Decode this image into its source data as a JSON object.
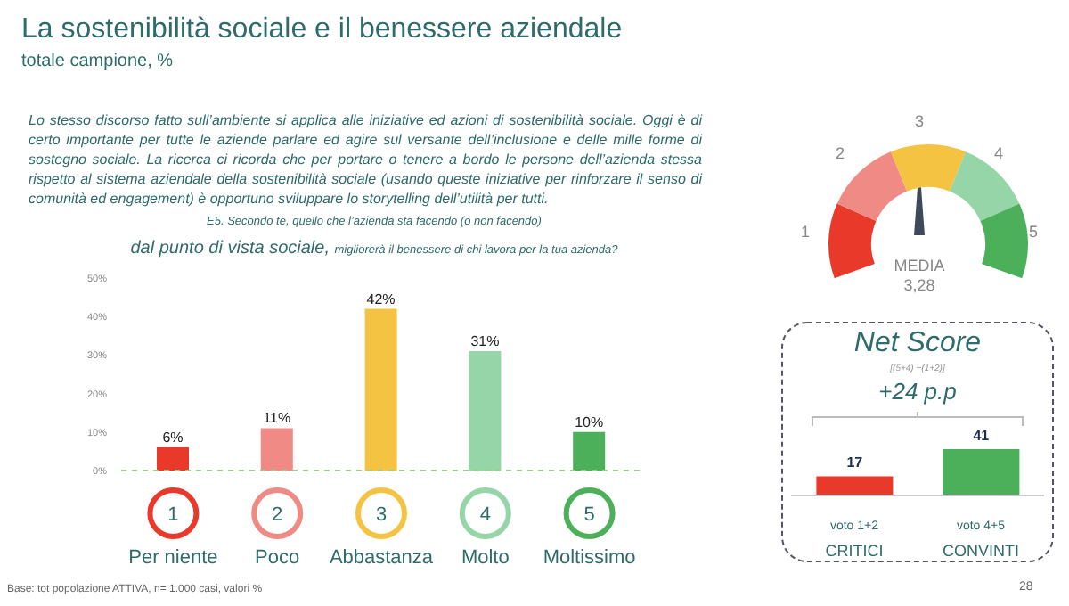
{
  "chart_data": [
    {
      "type": "bar",
      "title": "La sostenibilità sociale e il benessere aziendale",
      "subtitle": "totale campione, %",
      "categories": [
        "Per niente",
        "Poco",
        "Abbastanza",
        "Molto",
        "Moltissimo"
      ],
      "values": [
        6,
        11,
        42,
        31,
        10
      ],
      "colors": [
        "#e8392b",
        "#ef8a85",
        "#f5c342",
        "#96d5a8",
        "#4caf5a"
      ],
      "value_labels": [
        "6%",
        "11%",
        "42%",
        "31%",
        "10%"
      ],
      "ylim": [
        0,
        50
      ],
      "yticks": [
        {
          "value": 0,
          "label": "0%"
        },
        {
          "value": 10,
          "label": "10%"
        },
        {
          "value": 20,
          "label": "20%"
        },
        {
          "value": 30,
          "label": "30%"
        },
        {
          "value": 40,
          "label": "40%"
        },
        {
          "value": 50,
          "label": "50%"
        }
      ],
      "annotations": [
        "Lo stesso discorso fatto sull’ambiente si applica alle iniziative ed  azioni di sostenibilità  sociale.  Oggi è di certo importante per tutte le aziende parlare ed agire sul versante dell’inclusione e delle mille forme di sostegno sociale.  La ricerca ci ricorda che per portare o tenere a bordo le persone dell’azienda stessa rispetto al sistema aziendale della sostenibilità sociale (usando queste iniziative per rinforzare il senso di comunità ed engagement) è opportuno sviluppare lo storytelling dell’utilità per tutti.",
        "E5. Secondo te, quello che l’azienda sta facendo (o non facendo)",
        "dal punto di vista sociale,",
        "migliorerà il benessere di chi lavora per la tua azienda?",
        "Base: tot popolazione ATTIVA, n= 1.000 casi, valori %",
        "1",
        "2",
        "3",
        "4",
        "5"
      ]
    },
    {
      "type": "donut",
      "categories": [
        "1",
        "2",
        "3",
        "4",
        "5"
      ],
      "values": [
        20,
        20,
        20,
        20,
        20
      ],
      "colors": [
        "#e8392b",
        "#ef8a85",
        "#f5c342",
        "#96d5a8",
        "#4caf5a"
      ],
      "needle": "3",
      "annotations": [
        "MEDIA",
        "3,28"
      ]
    },
    {
      "type": "bar",
      "title": "Net Score",
      "subtitle": "[(5+4) −(1+2)]",
      "categories": [
        "CRITICI",
        "CONVINTI"
      ],
      "values": [
        17,
        41
      ],
      "colors": [
        "#e8392b",
        "#4caf5a"
      ],
      "data_labels": true,
      "annotations": [
        "+24 p.p",
        "voto 1+2",
        "voto 4+5",
        "28"
      ]
    }
  ]
}
